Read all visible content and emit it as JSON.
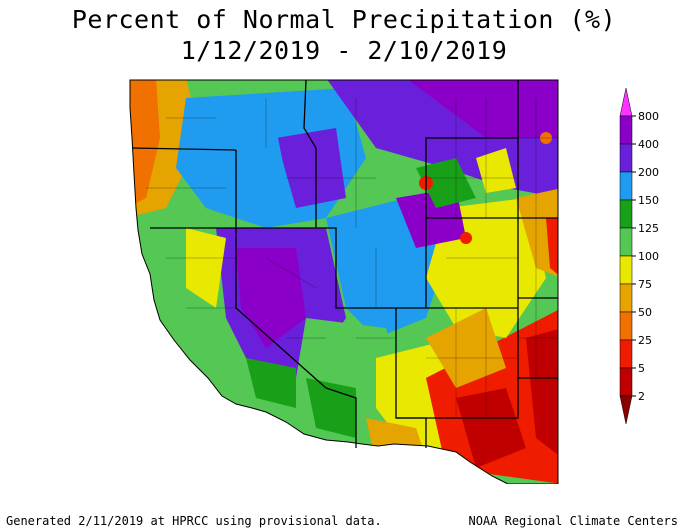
{
  "title": {
    "line1": "Percent of Normal Precipitation (%)",
    "line2": "1/12/2019 - 2/10/2019"
  },
  "legend": {
    "labels": [
      "800",
      "400",
      "200",
      "150",
      "125",
      "100",
      "75",
      "50",
      "25",
      "5",
      "2"
    ],
    "colors": [
      "#ff33ff",
      "#8a00c8",
      "#6a1fdb",
      "#1f9bf0",
      "#18a118",
      "#55c755",
      "#e8e800",
      "#e6a400",
      "#f07000",
      "#f01c00",
      "#c00000",
      "#8a0000"
    ]
  },
  "footer": {
    "left": "Generated 2/11/2019 at HPRCC using provisional data.",
    "right": "NOAA Regional Climate Centers"
  }
}
